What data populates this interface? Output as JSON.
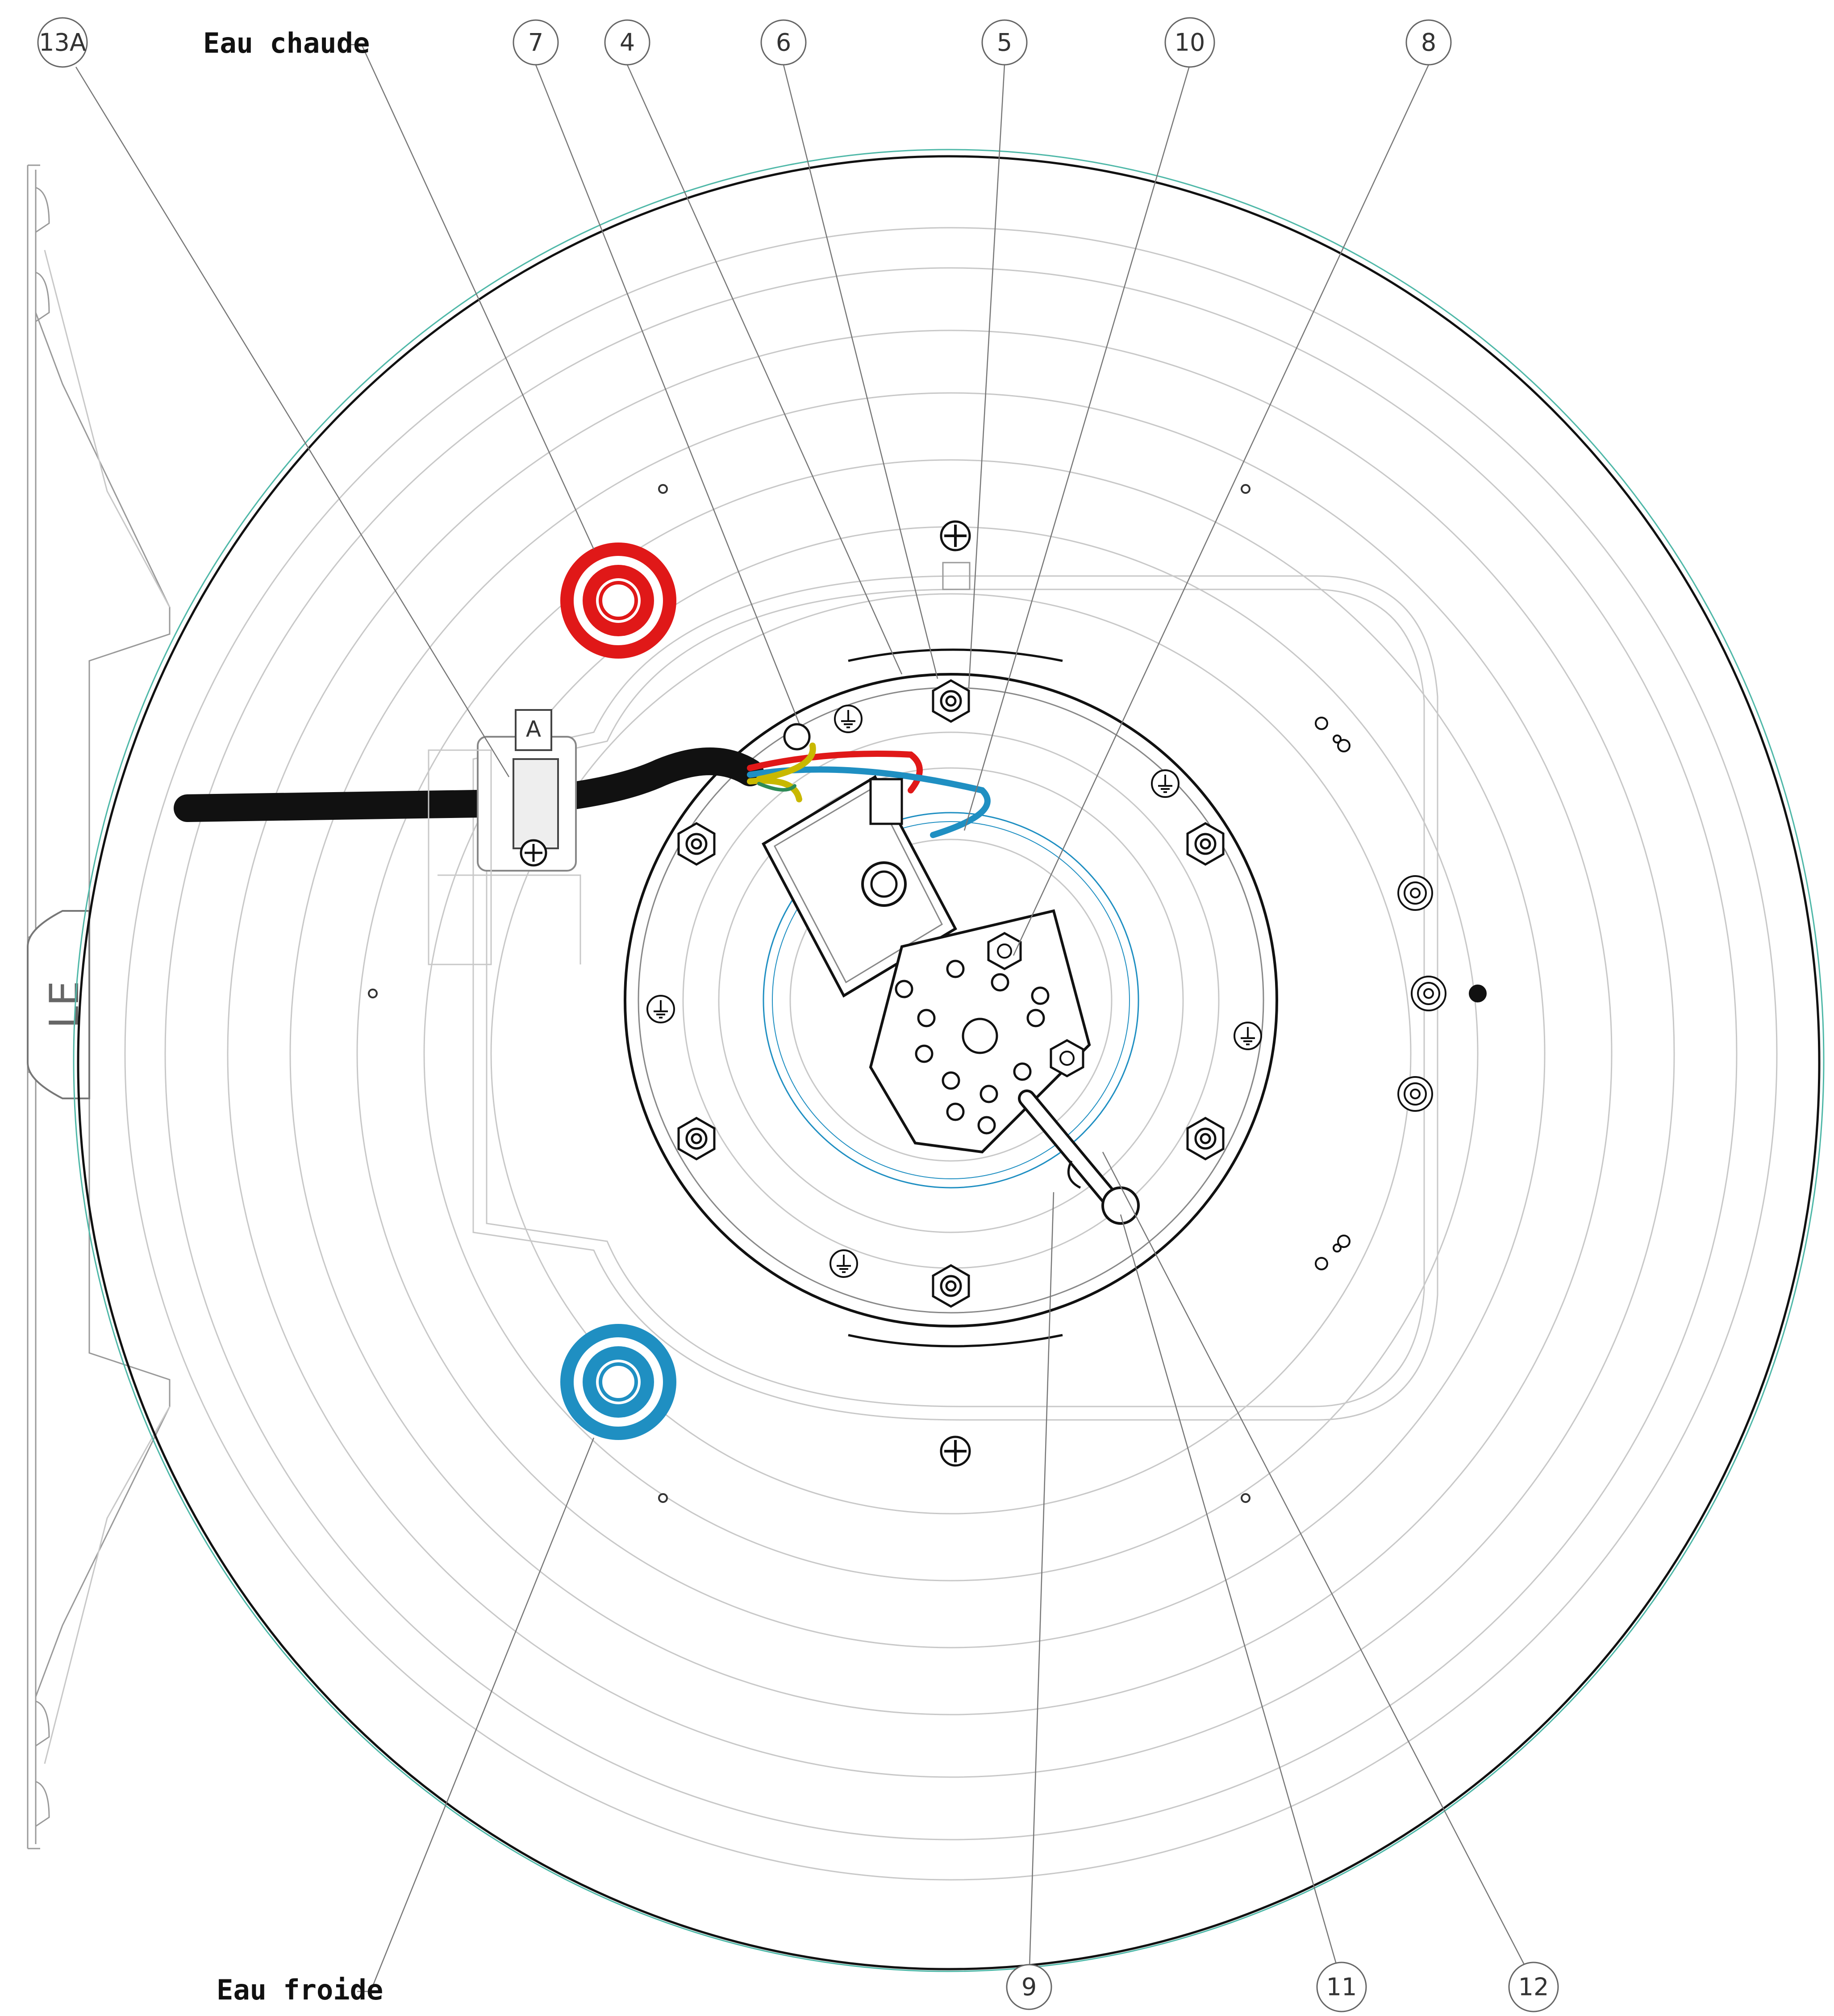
{
  "labels": {
    "hot_water": "Eau chaude",
    "cold_water": "Eau froide",
    "logo": "LE",
    "clamp_mark": "A"
  },
  "callouts": [
    {
      "id": "13A",
      "name": "callout-13a"
    },
    {
      "id": "7",
      "name": "callout-7"
    },
    {
      "id": "4",
      "name": "callout-4"
    },
    {
      "id": "6",
      "name": "callout-6"
    },
    {
      "id": "5",
      "name": "callout-5"
    },
    {
      "id": "10",
      "name": "callout-10"
    },
    {
      "id": "8",
      "name": "callout-8"
    },
    {
      "id": "9",
      "name": "callout-9"
    },
    {
      "id": "11",
      "name": "callout-11"
    },
    {
      "id": "12",
      "name": "callout-12"
    }
  ],
  "colors": {
    "hot_pipe": "#e01818",
    "cold_pipe": "#1f8fc2",
    "wire_phase": "#e01818",
    "wire_neutral": "#1f8fc2",
    "wire_earth": "#c9b800",
    "cable": "#111111",
    "tank_outline_accent": "#4fb8a8"
  }
}
